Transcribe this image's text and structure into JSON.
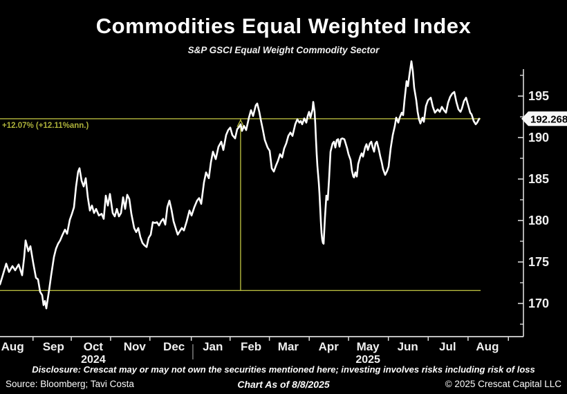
{
  "title": "Commodities Equal Weighted Index",
  "subtitle": "S&P GSCI Equal Weight Commodity Sector",
  "footer": {
    "disclosure": "Disclosure: Crescat may or may not own the securities mentioned here; investing involves risks including risk of loss",
    "source": "Source: Bloomberg; Tavi Costa",
    "as_of": "Chart As of 8/8/2025",
    "copyright": "© 2025 Crescat Capital LLC"
  },
  "colors": {
    "background": "#000000",
    "price_line": "#ffffff",
    "axis": "#dcdcdc",
    "tick_label": "#f0f0f0",
    "accent_yellow_line": "#b6ba3e",
    "accent_yellow_text": "#adb13a",
    "year_divider": "#9a9a9a",
    "badge_bg": "#f7f7f7",
    "badge_text": "#000000"
  },
  "chart_data": {
    "type": "line",
    "title": "Commodities Equal Weighted Index",
    "subtitle": "S&P GSCI Equal Weight Commodity Sector",
    "x_range": [
      "Aug 2024",
      "Aug 2025"
    ],
    "ylim": [
      166,
      199.5
    ],
    "grid": false,
    "legend": "none",
    "y_axis": {
      "side": "right",
      "major_ticks": [
        195,
        190,
        185,
        180,
        175,
        170
      ],
      "minor_ticks": [
        197.5,
        192.5,
        187.5,
        182.5,
        177.5,
        172.5,
        167.5
      ],
      "last_price": "192.2683"
    },
    "x_axis": {
      "month_labels": [
        {
          "label": "Aug",
          "f": 0.024
        },
        {
          "label": "Sep",
          "f": 0.102
        },
        {
          "label": "Oct",
          "f": 0.178
        },
        {
          "label": "Nov",
          "f": 0.257
        },
        {
          "label": "Dec",
          "f": 0.332
        },
        {
          "label": "Jan",
          "f": 0.406
        },
        {
          "label": "Feb",
          "f": 0.479
        },
        {
          "label": "Mar",
          "f": 0.55
        },
        {
          "label": "Apr",
          "f": 0.627
        },
        {
          "label": "May",
          "f": 0.702
        },
        {
          "label": "Jun",
          "f": 0.778
        },
        {
          "label": "Jul",
          "f": 0.854
        },
        {
          "label": "Aug",
          "f": 0.93
        }
      ],
      "boundary_ticks_f": [
        0.063,
        0.136,
        0.211,
        0.286,
        0.365,
        0.439,
        0.514,
        0.59,
        0.665,
        0.741,
        0.817,
        0.893,
        0.97
      ],
      "year_labels": [
        {
          "label": "2024",
          "f": 0.178
        },
        {
          "label": "2025",
          "f": 0.702
        }
      ],
      "year_divider_f": 0.368
    },
    "annotations": {
      "gain_label": "+12.07% (+12.11%ann.)",
      "upper_line_value": 192.2683,
      "lower_line_value": 171.56,
      "lines_end_f": 0.917,
      "vline_f": 0.459,
      "marker": "triangle-up"
    },
    "series": [
      {
        "name": "S&P GSCI Equal Weight Commodity Sector",
        "points": [
          [
            0.0,
            172.3
          ],
          [
            0.0053,
            173.4
          ],
          [
            0.0119,
            174.8
          ],
          [
            0.0172,
            173.8
          ],
          [
            0.0237,
            174.5
          ],
          [
            0.029,
            174.0
          ],
          [
            0.0356,
            174.7
          ],
          [
            0.0422,
            173.4
          ],
          [
            0.0462,
            175.6
          ],
          [
            0.0488,
            177.6
          ],
          [
            0.0541,
            176.3
          ],
          [
            0.058,
            176.9
          ],
          [
            0.0633,
            174.9
          ],
          [
            0.0686,
            173.1
          ],
          [
            0.0726,
            172.9
          ],
          [
            0.0765,
            171.4
          ],
          [
            0.0805,
            171.0
          ],
          [
            0.0831,
            169.8
          ],
          [
            0.0858,
            170.3
          ],
          [
            0.0884,
            169.4
          ],
          [
            0.0937,
            171.6
          ],
          [
            0.0976,
            173.4
          ],
          [
            0.1029,
            175.6
          ],
          [
            0.1069,
            176.6
          ],
          [
            0.1108,
            177.2
          ],
          [
            0.1148,
            177.6
          ],
          [
            0.1187,
            178.2
          ],
          [
            0.124,
            178.9
          ],
          [
            0.128,
            178.4
          ],
          [
            0.1332,
            180.1
          ],
          [
            0.1372,
            180.8
          ],
          [
            0.1412,
            181.6
          ],
          [
            0.1451,
            184.1
          ],
          [
            0.1491,
            185.9
          ],
          [
            0.1517,
            186.3
          ],
          [
            0.1557,
            184.8
          ],
          [
            0.1596,
            184.1
          ],
          [
            0.1636,
            185.1
          ],
          [
            0.1675,
            182.8
          ],
          [
            0.1715,
            181.2
          ],
          [
            0.1755,
            181.8
          ],
          [
            0.1794,
            180.9
          ],
          [
            0.1834,
            181.4
          ],
          [
            0.1887,
            180.6
          ],
          [
            0.1939,
            180.8
          ],
          [
            0.1979,
            180.2
          ],
          [
            0.2018,
            183.0
          ],
          [
            0.2058,
            181.8
          ],
          [
            0.2098,
            183.2
          ],
          [
            0.215,
            180.9
          ],
          [
            0.219,
            180.5
          ],
          [
            0.223,
            181.4
          ],
          [
            0.2269,
            180.5
          ],
          [
            0.2309,
            180.9
          ],
          [
            0.2348,
            182.8
          ],
          [
            0.2388,
            181.4
          ],
          [
            0.2427,
            183.1
          ],
          [
            0.2467,
            182.6
          ],
          [
            0.2507,
            180.8
          ],
          [
            0.2559,
            179.1
          ],
          [
            0.2599,
            178.6
          ],
          [
            0.2639,
            179.1
          ],
          [
            0.2678,
            178.0
          ],
          [
            0.2718,
            177.3
          ],
          [
            0.2757,
            177.0
          ],
          [
            0.2797,
            176.8
          ],
          [
            0.2836,
            177.9
          ],
          [
            0.2876,
            178.3
          ],
          [
            0.2915,
            179.8
          ],
          [
            0.2955,
            179.7
          ],
          [
            0.2995,
            179.8
          ],
          [
            0.3034,
            179.4
          ],
          [
            0.3074,
            179.9
          ],
          [
            0.3113,
            180.2
          ],
          [
            0.3153,
            179.5
          ],
          [
            0.3193,
            181.6
          ],
          [
            0.3232,
            182.4
          ],
          [
            0.3272,
            181.3
          ],
          [
            0.3311,
            179.9
          ],
          [
            0.3351,
            179.1
          ],
          [
            0.339,
            178.3
          ],
          [
            0.343,
            178.7
          ],
          [
            0.3469,
            179.1
          ],
          [
            0.3509,
            178.8
          ],
          [
            0.3562,
            179.9
          ],
          [
            0.3615,
            181.2
          ],
          [
            0.3654,
            180.6
          ],
          [
            0.3707,
            181.6
          ],
          [
            0.376,
            182.4
          ],
          [
            0.3799,
            182.7
          ],
          [
            0.3839,
            182.0
          ],
          [
            0.3892,
            184.6
          ],
          [
            0.3931,
            185.8
          ],
          [
            0.3984,
            185.1
          ],
          [
            0.4024,
            187.0
          ],
          [
            0.4063,
            188.3
          ],
          [
            0.4116,
            187.4
          ],
          [
            0.4169,
            188.9
          ],
          [
            0.4222,
            189.5
          ],
          [
            0.4261,
            188.5
          ],
          [
            0.4314,
            190.3
          ],
          [
            0.4354,
            190.9
          ],
          [
            0.4393,
            191.2
          ],
          [
            0.4433,
            190.3
          ],
          [
            0.4485,
            189.9
          ],
          [
            0.4525,
            191.0
          ],
          [
            0.4565,
            191.3
          ],
          [
            0.4591,
            191.6
          ],
          [
            0.4617,
            190.8
          ],
          [
            0.4657,
            191.4
          ],
          [
            0.4696,
            190.9
          ],
          [
            0.4749,
            192.4
          ],
          [
            0.4789,
            193.3
          ],
          [
            0.4828,
            192.6
          ],
          [
            0.4881,
            193.9
          ],
          [
            0.4908,
            194.1
          ],
          [
            0.4947,
            193.1
          ],
          [
            0.4974,
            192.2
          ],
          [
            0.5013,
            191.0
          ],
          [
            0.5053,
            189.7
          ],
          [
            0.5106,
            188.8
          ],
          [
            0.5145,
            188.4
          ],
          [
            0.5185,
            186.3
          ],
          [
            0.5224,
            185.9
          ],
          [
            0.5264,
            186.6
          ],
          [
            0.5303,
            187.2
          ],
          [
            0.5343,
            188.0
          ],
          [
            0.5383,
            187.6
          ],
          [
            0.5422,
            188.7
          ],
          [
            0.5462,
            189.3
          ],
          [
            0.5501,
            190.2
          ],
          [
            0.5541,
            190.6
          ],
          [
            0.558,
            190.2
          ],
          [
            0.5633,
            191.6
          ],
          [
            0.5673,
            192.2
          ],
          [
            0.5712,
            191.8
          ],
          [
            0.5739,
            192.0
          ],
          [
            0.5765,
            191.6
          ],
          [
            0.5805,
            192.3
          ],
          [
            0.5844,
            191.8
          ],
          [
            0.5871,
            192.6
          ],
          [
            0.5897,
            193.1
          ],
          [
            0.5923,
            192.4
          ],
          [
            0.5963,
            193.4
          ],
          [
            0.5976,
            194.3
          ],
          [
            0.6003,
            193.1
          ],
          [
            0.6016,
            191.6
          ],
          [
            0.6029,
            189.7
          ],
          [
            0.6042,
            188.0
          ],
          [
            0.6055,
            186.6
          ],
          [
            0.6082,
            184.6
          ],
          [
            0.6095,
            183.3
          ],
          [
            0.6108,
            181.6
          ],
          [
            0.6121,
            179.9
          ],
          [
            0.6134,
            178.5
          ],
          [
            0.6148,
            177.7
          ],
          [
            0.6161,
            177.3
          ],
          [
            0.6174,
            177.2
          ],
          [
            0.62,
            180.4
          ],
          [
            0.6227,
            183.0
          ],
          [
            0.6253,
            182.5
          ],
          [
            0.6279,
            185.0
          ],
          [
            0.6306,
            188.3
          ],
          [
            0.6345,
            189.3
          ],
          [
            0.6372,
            189.5
          ],
          [
            0.6398,
            188.8
          ],
          [
            0.6425,
            189.7
          ],
          [
            0.6451,
            189.8
          ],
          [
            0.6477,
            188.9
          ],
          [
            0.6504,
            189.8
          ],
          [
            0.653,
            189.9
          ],
          [
            0.657,
            189.8
          ],
          [
            0.6623,
            188.7
          ],
          [
            0.6649,
            188.0
          ],
          [
            0.6689,
            187.3
          ],
          [
            0.6715,
            186.0
          ],
          [
            0.6742,
            185.3
          ],
          [
            0.6755,
            185.2
          ],
          [
            0.6781,
            185.8
          ],
          [
            0.6808,
            185.3
          ],
          [
            0.6834,
            186.8
          ],
          [
            0.6873,
            187.7
          ],
          [
            0.69,
            188.1
          ],
          [
            0.6926,
            187.7
          ],
          [
            0.6966,
            188.8
          ],
          [
            0.6992,
            189.2
          ],
          [
            0.7018,
            188.5
          ],
          [
            0.7058,
            189.3
          ],
          [
            0.7084,
            189.5
          ],
          [
            0.7111,
            188.8
          ],
          [
            0.7137,
            188.3
          ],
          [
            0.7164,
            189.3
          ],
          [
            0.719,
            189.5
          ],
          [
            0.723,
            188.5
          ],
          [
            0.7256,
            187.7
          ],
          [
            0.7283,
            187.0
          ],
          [
            0.7309,
            186.2
          ],
          [
            0.7348,
            185.5
          ],
          [
            0.7388,
            186.0
          ],
          [
            0.7414,
            186.5
          ],
          [
            0.7454,
            188.7
          ],
          [
            0.7493,
            190.3
          ],
          [
            0.7533,
            191.4
          ],
          [
            0.7559,
            192.4
          ],
          [
            0.7599,
            191.8
          ],
          [
            0.7625,
            192.4
          ],
          [
            0.7665,
            193.0
          ],
          [
            0.7691,
            192.7
          ],
          [
            0.7718,
            194.5
          ],
          [
            0.7757,
            196.8
          ],
          [
            0.7784,
            196.2
          ],
          [
            0.781,
            197.5
          ],
          [
            0.785,
            199.2
          ],
          [
            0.7876,
            198.0
          ],
          [
            0.7902,
            196.0
          ],
          [
            0.7942,
            194.5
          ],
          [
            0.7968,
            193.1
          ],
          [
            0.7995,
            192.2
          ],
          [
            0.8021,
            191.7
          ],
          [
            0.8061,
            192.4
          ],
          [
            0.8087,
            191.9
          ],
          [
            0.8127,
            193.8
          ],
          [
            0.8166,
            194.5
          ],
          [
            0.8219,
            194.8
          ],
          [
            0.8259,
            193.7
          ],
          [
            0.8298,
            193.0
          ],
          [
            0.8351,
            193.4
          ],
          [
            0.8391,
            193.1
          ],
          [
            0.843,
            193.7
          ],
          [
            0.847,
            193.3
          ],
          [
            0.8509,
            193.0
          ],
          [
            0.8549,
            194.2
          ],
          [
            0.8588,
            194.9
          ],
          [
            0.8628,
            195.3
          ],
          [
            0.8668,
            195.5
          ],
          [
            0.8707,
            194.3
          ],
          [
            0.8747,
            193.4
          ],
          [
            0.8786,
            193.1
          ],
          [
            0.8813,
            193.5
          ],
          [
            0.8852,
            194.4
          ],
          [
            0.8892,
            194.8
          ],
          [
            0.8931,
            193.9
          ],
          [
            0.8971,
            193.0
          ],
          [
            0.8997,
            192.8
          ],
          [
            0.9037,
            192.0
          ],
          [
            0.9076,
            191.6
          ],
          [
            0.9103,
            191.8
          ],
          [
            0.9142,
            192.27
          ]
        ]
      }
    ]
  }
}
